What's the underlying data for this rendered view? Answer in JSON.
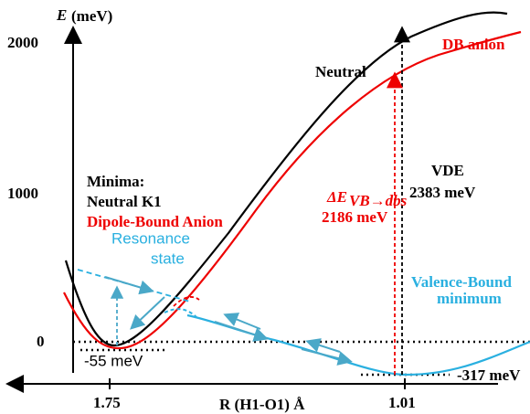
{
  "axes": {
    "y_label": "E",
    "y_unit": "(meV)",
    "y_ticks": [
      "2000",
      "1000",
      "0"
    ],
    "x_label": "R (H1-O1) Å",
    "x_ticks": [
      "1.75",
      "1.01"
    ]
  },
  "curves": {
    "neutral": "Neutral",
    "db_anion": "DB anion",
    "valence_bound": [
      "Valence-Bound",
      "minimum"
    ],
    "resonance": [
      "Resonance",
      "state"
    ]
  },
  "minima": {
    "title": "Minima:",
    "neutral": "Neutral K1",
    "anion": "Dipole-Bound Anion",
    "db_energy": "-55 meV",
    "vb_energy": "-317 meV"
  },
  "vde": {
    "label": "VDE",
    "value": "2383 meV"
  },
  "delta": {
    "symbol": "ΔE",
    "subscript": "VB→dbs",
    "value": "2186 meV"
  }
}
